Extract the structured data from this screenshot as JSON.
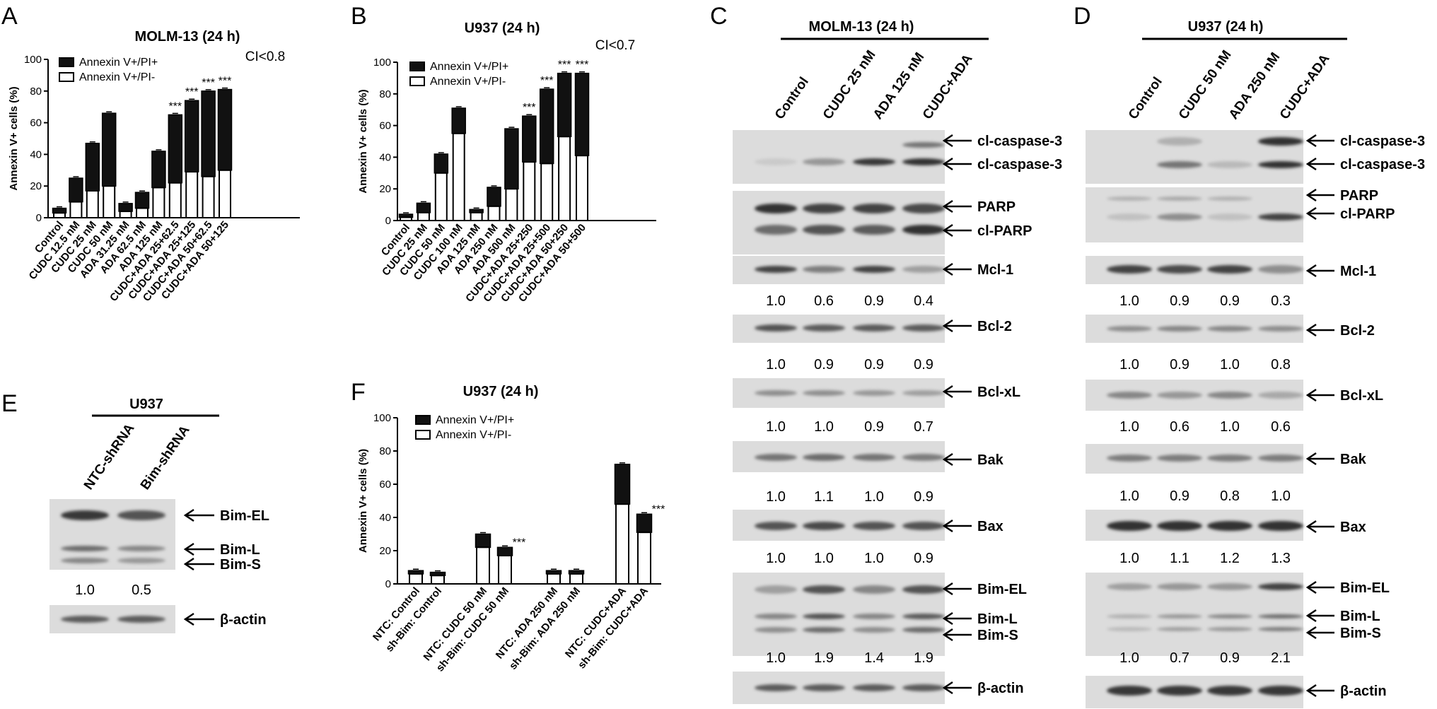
{
  "panels": [
    {
      "letter": "A",
      "title": "MOLM-13 (24 h)"
    },
    {
      "letter": "B",
      "title": "U937 (24 h)"
    },
    {
      "letter": "C",
      "title": "MOLM-13 (24 h)"
    },
    {
      "letter": "D",
      "title": "U937 (24 h)"
    },
    {
      "letter": "E",
      "title": "U937"
    },
    {
      "letter": "F",
      "title": "U937 (24 h)"
    }
  ],
  "chart_data": [
    {
      "id": "A",
      "type": "bar",
      "stacked": true,
      "title": "MOLM-13 (24 h)",
      "ylabel": "Annexin V+ cells (%)",
      "ylim": [
        0,
        100
      ],
      "yticks": [
        0,
        20,
        40,
        60,
        80,
        100
      ],
      "categories": [
        "Control",
        "CUDC 12.5 nM",
        "CUDC 25 nM",
        "CUDC 50 nM",
        "ADA 31.25 nM",
        "ADA 62.5 nM",
        "ADA 125 nM",
        "CUDC+ADA 25+62.5",
        "CUDC+ADA 25+125",
        "CUDC+ADA 50+62.5",
        "CUDC+ADA 50+125"
      ],
      "series": [
        {
          "name": "Annexin V+/PI-",
          "color": "#ffffff",
          "values": [
            3,
            10,
            17,
            20,
            4,
            6,
            19,
            22,
            29,
            26,
            30
          ]
        },
        {
          "name": "Annexin V+/PI+",
          "color": "#111111",
          "values": [
            3,
            15,
            30,
            46,
            5,
            10,
            23,
            43,
            45,
            54,
            51
          ]
        }
      ],
      "totals": [
        6,
        25,
        47,
        66,
        9,
        16,
        42,
        65,
        74,
        80,
        81
      ],
      "significance": [
        "",
        "",
        "",
        "",
        "",
        "",
        "",
        "***",
        "***",
        "***",
        "***"
      ],
      "annotation": "CI<0.8"
    },
    {
      "id": "B",
      "type": "bar",
      "stacked": true,
      "title": "U937 (24 h)",
      "ylabel": "Annexin V+ cells (%)",
      "ylim": [
        0,
        100
      ],
      "yticks": [
        0,
        20,
        40,
        60,
        80,
        100
      ],
      "categories": [
        "Control",
        "CUDC 25 nM",
        "CUDC 50 nM",
        "CUDC 100 nM",
        "ADA 125 nM",
        "ADA 250 nM",
        "ADA 500 nM",
        "CUDC+ADA 25+250",
        "CUDC+ADA 25+500",
        "CUDC+ADA 50+250",
        "CUDC+ADA 50+500"
      ],
      "series": [
        {
          "name": "Annexin V+/PI-",
          "color": "#ffffff",
          "values": [
            2,
            5,
            30,
            55,
            5,
            9,
            20,
            37,
            36,
            53,
            41
          ]
        },
        {
          "name": "Annexin V+/PI+",
          "color": "#111111",
          "values": [
            2,
            6,
            12,
            16,
            2,
            12,
            38,
            29,
            47,
            40,
            52
          ]
        }
      ],
      "totals": [
        4,
        11,
        42,
        71,
        7,
        21,
        58,
        66,
        83,
        93,
        93
      ],
      "significance": [
        "",
        "",
        "",
        "",
        "",
        "",
        "",
        "***",
        "***",
        "***",
        "***"
      ],
      "annotation": "CI<0.7"
    },
    {
      "id": "F",
      "type": "bar",
      "stacked": true,
      "title": "U937 (24 h)",
      "ylabel": "Annexin V+ cells (%)",
      "ylim": [
        0,
        100
      ],
      "yticks": [
        0,
        20,
        40,
        60,
        80,
        100
      ],
      "categories": [
        "NTC: Control",
        "sh-Bim: Control",
        "NTC: CUDC 50 nM",
        "sh-Bim: CUDC 50 nM",
        "NTC: ADA 250 nM",
        "sh-Bim: ADA 250 nM",
        "NTC: CUDC+ADA",
        "sh-Bim: CUDC+ADA"
      ],
      "series": [
        {
          "name": "Annexin V+/PI-",
          "color": "#ffffff",
          "values": [
            6,
            5,
            22,
            17,
            6,
            6,
            48,
            31
          ]
        },
        {
          "name": "Annexin V+/PI+",
          "color": "#111111",
          "values": [
            2,
            2,
            8,
            5,
            2,
            2,
            24,
            11
          ]
        }
      ],
      "totals": [
        8,
        7,
        30,
        22,
        8,
        8,
        72,
        42
      ],
      "significance": [
        "",
        "",
        "",
        "***",
        "",
        "",
        "",
        "***"
      ],
      "annotation": ""
    }
  ],
  "westerns": {
    "C": {
      "lanes": [
        "Control",
        "CUDC 25 nM",
        "ADA 125 nM",
        "CUDC+ADA"
      ],
      "bands": [
        {
          "label": "cl-caspase-3",
          "quant": null
        },
        {
          "label": "PARP",
          "quant": null
        },
        {
          "label": "cl-PARP",
          "quant": null
        },
        {
          "label": "Mcl-1",
          "quant": [
            "1.0",
            "0.6",
            "0.9",
            "0.4"
          ]
        },
        {
          "label": "Bcl-2",
          "quant": [
            "1.0",
            "0.9",
            "0.9",
            "0.9"
          ]
        },
        {
          "label": "Bcl-xL",
          "quant": [
            "1.0",
            "1.0",
            "0.9",
            "0.7"
          ]
        },
        {
          "label": "Bak",
          "quant": [
            "1.0",
            "1.1",
            "1.0",
            "0.9"
          ]
        },
        {
          "label": "Bax",
          "quant": [
            "1.0",
            "1.0",
            "1.0",
            "0.9"
          ]
        },
        {
          "label": "Bim-EL",
          "quant": null
        },
        {
          "label": "Bim-L",
          "quant": null
        },
        {
          "label": "Bim-S",
          "quant": [
            "1.0",
            "1.9",
            "1.4",
            "1.9"
          ]
        },
        {
          "label": "β-actin",
          "quant": null
        }
      ]
    },
    "D": {
      "lanes": [
        "Control",
        "CUDC 50 nM",
        "ADA 250 nM",
        "CUDC+ADA"
      ],
      "bands": [
        {
          "label": "cl-caspase-3",
          "quant": null
        },
        {
          "label": "PARP",
          "quant": null
        },
        {
          "label": "cl-PARP",
          "quant": null
        },
        {
          "label": "Mcl-1",
          "quant": [
            "1.0",
            "0.9",
            "0.9",
            "0.3"
          ]
        },
        {
          "label": "Bcl-2",
          "quant": [
            "1.0",
            "0.9",
            "1.0",
            "0.8"
          ]
        },
        {
          "label": "Bcl-xL",
          "quant": [
            "1.0",
            "0.6",
            "1.0",
            "0.6"
          ]
        },
        {
          "label": "Bak",
          "quant": [
            "1.0",
            "0.9",
            "0.8",
            "1.0"
          ]
        },
        {
          "label": "Bax",
          "quant": [
            "1.0",
            "1.1",
            "1.2",
            "1.3"
          ]
        },
        {
          "label": "Bim-EL",
          "quant": null
        },
        {
          "label": "Bim-L",
          "quant": null
        },
        {
          "label": "Bim-S",
          "quant": [
            "1.0",
            "0.7",
            "0.9",
            "2.1"
          ]
        },
        {
          "label": "β-actin",
          "quant": null
        }
      ]
    },
    "E": {
      "lanes": [
        "NTC-shRNA",
        "Bim-shRNA"
      ],
      "bands": [
        {
          "label": "Bim-EL",
          "quant": null
        },
        {
          "label": "Bim-L",
          "quant": null
        },
        {
          "label": "Bim-S",
          "quant": [
            "1.0",
            "0.5"
          ]
        },
        {
          "label": "β-actin",
          "quant": null
        }
      ]
    }
  }
}
